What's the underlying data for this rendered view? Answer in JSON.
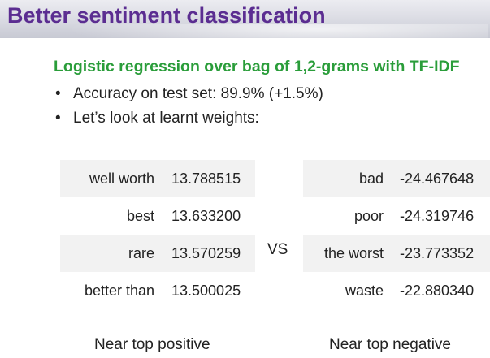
{
  "title": "Better sentiment classification",
  "subtitle": "Logistic regression over bag of 1,2-grams with TF-IDF",
  "bullets": [
    "Accuracy on test set: 89.9% (+1.5%)",
    "Let’s look at learnt weights:"
  ],
  "positive_table": {
    "caption": "Near top positive",
    "rows": [
      {
        "word": "well worth",
        "weight": "13.788515"
      },
      {
        "word": "best",
        "weight": "13.633200"
      },
      {
        "word": "rare",
        "weight": "13.570259"
      },
      {
        "word": "better than",
        "weight": "13.500025"
      }
    ]
  },
  "vs_label": "VS",
  "negative_table": {
    "caption": "Near top negative",
    "rows": [
      {
        "word": "bad",
        "weight": "-24.467648"
      },
      {
        "word": "poor",
        "weight": "-24.319746"
      },
      {
        "word": "the worst",
        "weight": "-23.773352"
      },
      {
        "word": "waste",
        "weight": "-22.880340"
      }
    ]
  },
  "colors": {
    "title": "#5b2d91",
    "subtitle": "#2a9d3a",
    "row_shade": "#f2f2f2"
  }
}
